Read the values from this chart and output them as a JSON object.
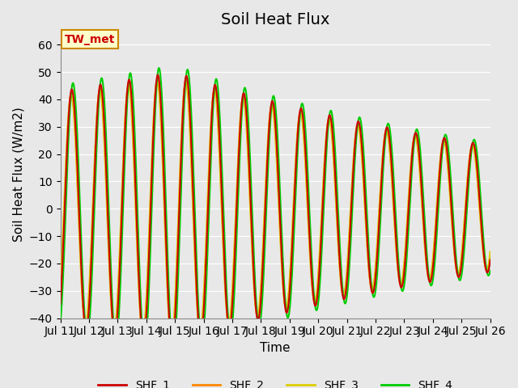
{
  "title": "Soil Heat Flux",
  "xlabel": "Time",
  "ylabel": "Soil Heat Flux (W/m2)",
  "xlim_days": [
    0,
    15
  ],
  "ylim": [
    -40,
    65
  ],
  "yticks": [
    -40,
    -30,
    -20,
    -10,
    0,
    10,
    20,
    30,
    40,
    50,
    60
  ],
  "xtick_labels": [
    "Jul 11",
    "Jul 12",
    "Jul 13",
    "Jul 14",
    "Jul 15",
    "Jul 16",
    "Jul 17",
    "Jul 18",
    "Jul 19",
    "Jul 20",
    "Jul 21",
    "Jul 22",
    "Jul 23",
    "Jul 24",
    "Jul 25",
    "Jul 26"
  ],
  "colors": {
    "SHF_1": "#cc0000",
    "SHF_2": "#ff8800",
    "SHF_3": "#ddcc00",
    "SHF_4": "#00cc00"
  },
  "legend_labels": [
    "SHF_1",
    "SHF_2",
    "SHF_3",
    "SHF_4"
  ],
  "bg_color": "#e8e8e8",
  "plot_bg_color": "#e8e8e8",
  "annotation_text": "TW_met",
  "annotation_bg": "#ffffcc",
  "annotation_border": "#cc8800",
  "grid_color": "#ffffff",
  "title_fontsize": 14,
  "axis_label_fontsize": 11,
  "tick_fontsize": 10,
  "legend_fontsize": 10,
  "linewidth": 1.5
}
